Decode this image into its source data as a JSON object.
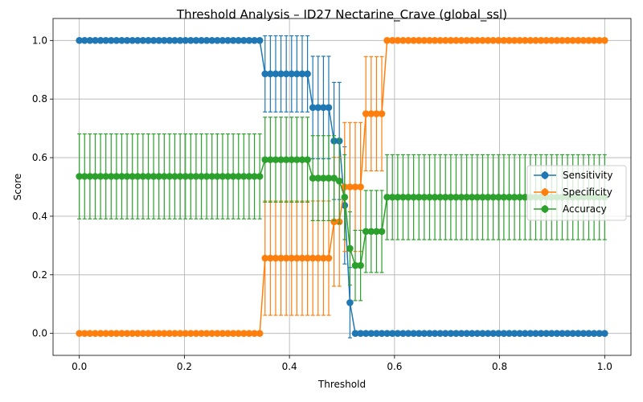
{
  "chart_data": {
    "type": "line",
    "title": "Threshold Analysis – ID27 Nectarine_Crave (global_ssl)",
    "xlabel": "Threshold",
    "ylabel": "Score",
    "xlim": [
      -0.05,
      1.05
    ],
    "ylim": [
      -0.075,
      1.075
    ],
    "xticks": [
      0.0,
      0.2,
      0.4,
      0.6,
      0.8,
      1.0
    ],
    "xtick_labels": [
      "0.0",
      "0.2",
      "0.4",
      "0.6",
      "0.8",
      "1.0"
    ],
    "yticks": [
      0.0,
      0.2,
      0.4,
      0.6,
      0.8,
      1.0
    ],
    "ytick_labels": [
      "0.0",
      "0.2",
      "0.4",
      "0.6",
      "0.8",
      "1.0"
    ],
    "grid": true,
    "legend_position": "center-right",
    "markers": "circle with error bars",
    "x": {
      "start": 0.0,
      "end": 1.0,
      "count": 100
    },
    "series": [
      {
        "name": "Sensitivity",
        "color": "#1f77b4",
        "segments": [
          {
            "to": 0.345,
            "value": 1.0,
            "error": 0.0
          },
          {
            "to": 0.435,
            "value": 0.886,
            "error": 0.13
          },
          {
            "to": 0.475,
            "value": 0.771,
            "error": 0.175
          },
          {
            "to": 0.495,
            "value": 0.657,
            "error": 0.2
          },
          {
            "to": 0.505,
            "value": 0.553,
            "error": 0.2
          },
          {
            "to": 0.515,
            "value": 0.437,
            "error": 0.2
          },
          {
            "to": 0.525,
            "value": 0.105,
            "error": 0.12
          },
          {
            "to": 1.0,
            "value": 0.0,
            "error": 0.0
          }
        ]
      },
      {
        "name": "Specificity",
        "color": "#ff7f0e",
        "segments": [
          {
            "to": 0.345,
            "value": 0.0,
            "error": 0.0
          },
          {
            "to": 0.475,
            "value": 0.257,
            "error": 0.195
          },
          {
            "to": 0.505,
            "value": 0.381,
            "error": 0.22
          },
          {
            "to": 0.545,
            "value": 0.5,
            "error": 0.22
          },
          {
            "to": 0.585,
            "value": 0.75,
            "error": 0.195
          },
          {
            "to": 1.0,
            "value": 1.0,
            "error": 0.0
          }
        ]
      },
      {
        "name": "Accuracy",
        "color": "#2ca02c",
        "segments": [
          {
            "to": 0.345,
            "value": 0.536,
            "error": 0.145
          },
          {
            "to": 0.435,
            "value": 0.593,
            "error": 0.145
          },
          {
            "to": 0.485,
            "value": 0.53,
            "error": 0.145
          },
          {
            "to": 0.495,
            "value": 0.52,
            "error": 0.145
          },
          {
            "to": 0.505,
            "value": 0.475,
            "error": 0.145
          },
          {
            "to": 0.515,
            "value": 0.465,
            "error": 0.145
          },
          {
            "to": 0.525,
            "value": 0.29,
            "error": 0.125
          },
          {
            "to": 0.545,
            "value": 0.232,
            "error": 0.12
          },
          {
            "to": 0.585,
            "value": 0.348,
            "error": 0.14
          },
          {
            "to": 1.0,
            "value": 0.465,
            "error": 0.145
          }
        ]
      }
    ]
  }
}
